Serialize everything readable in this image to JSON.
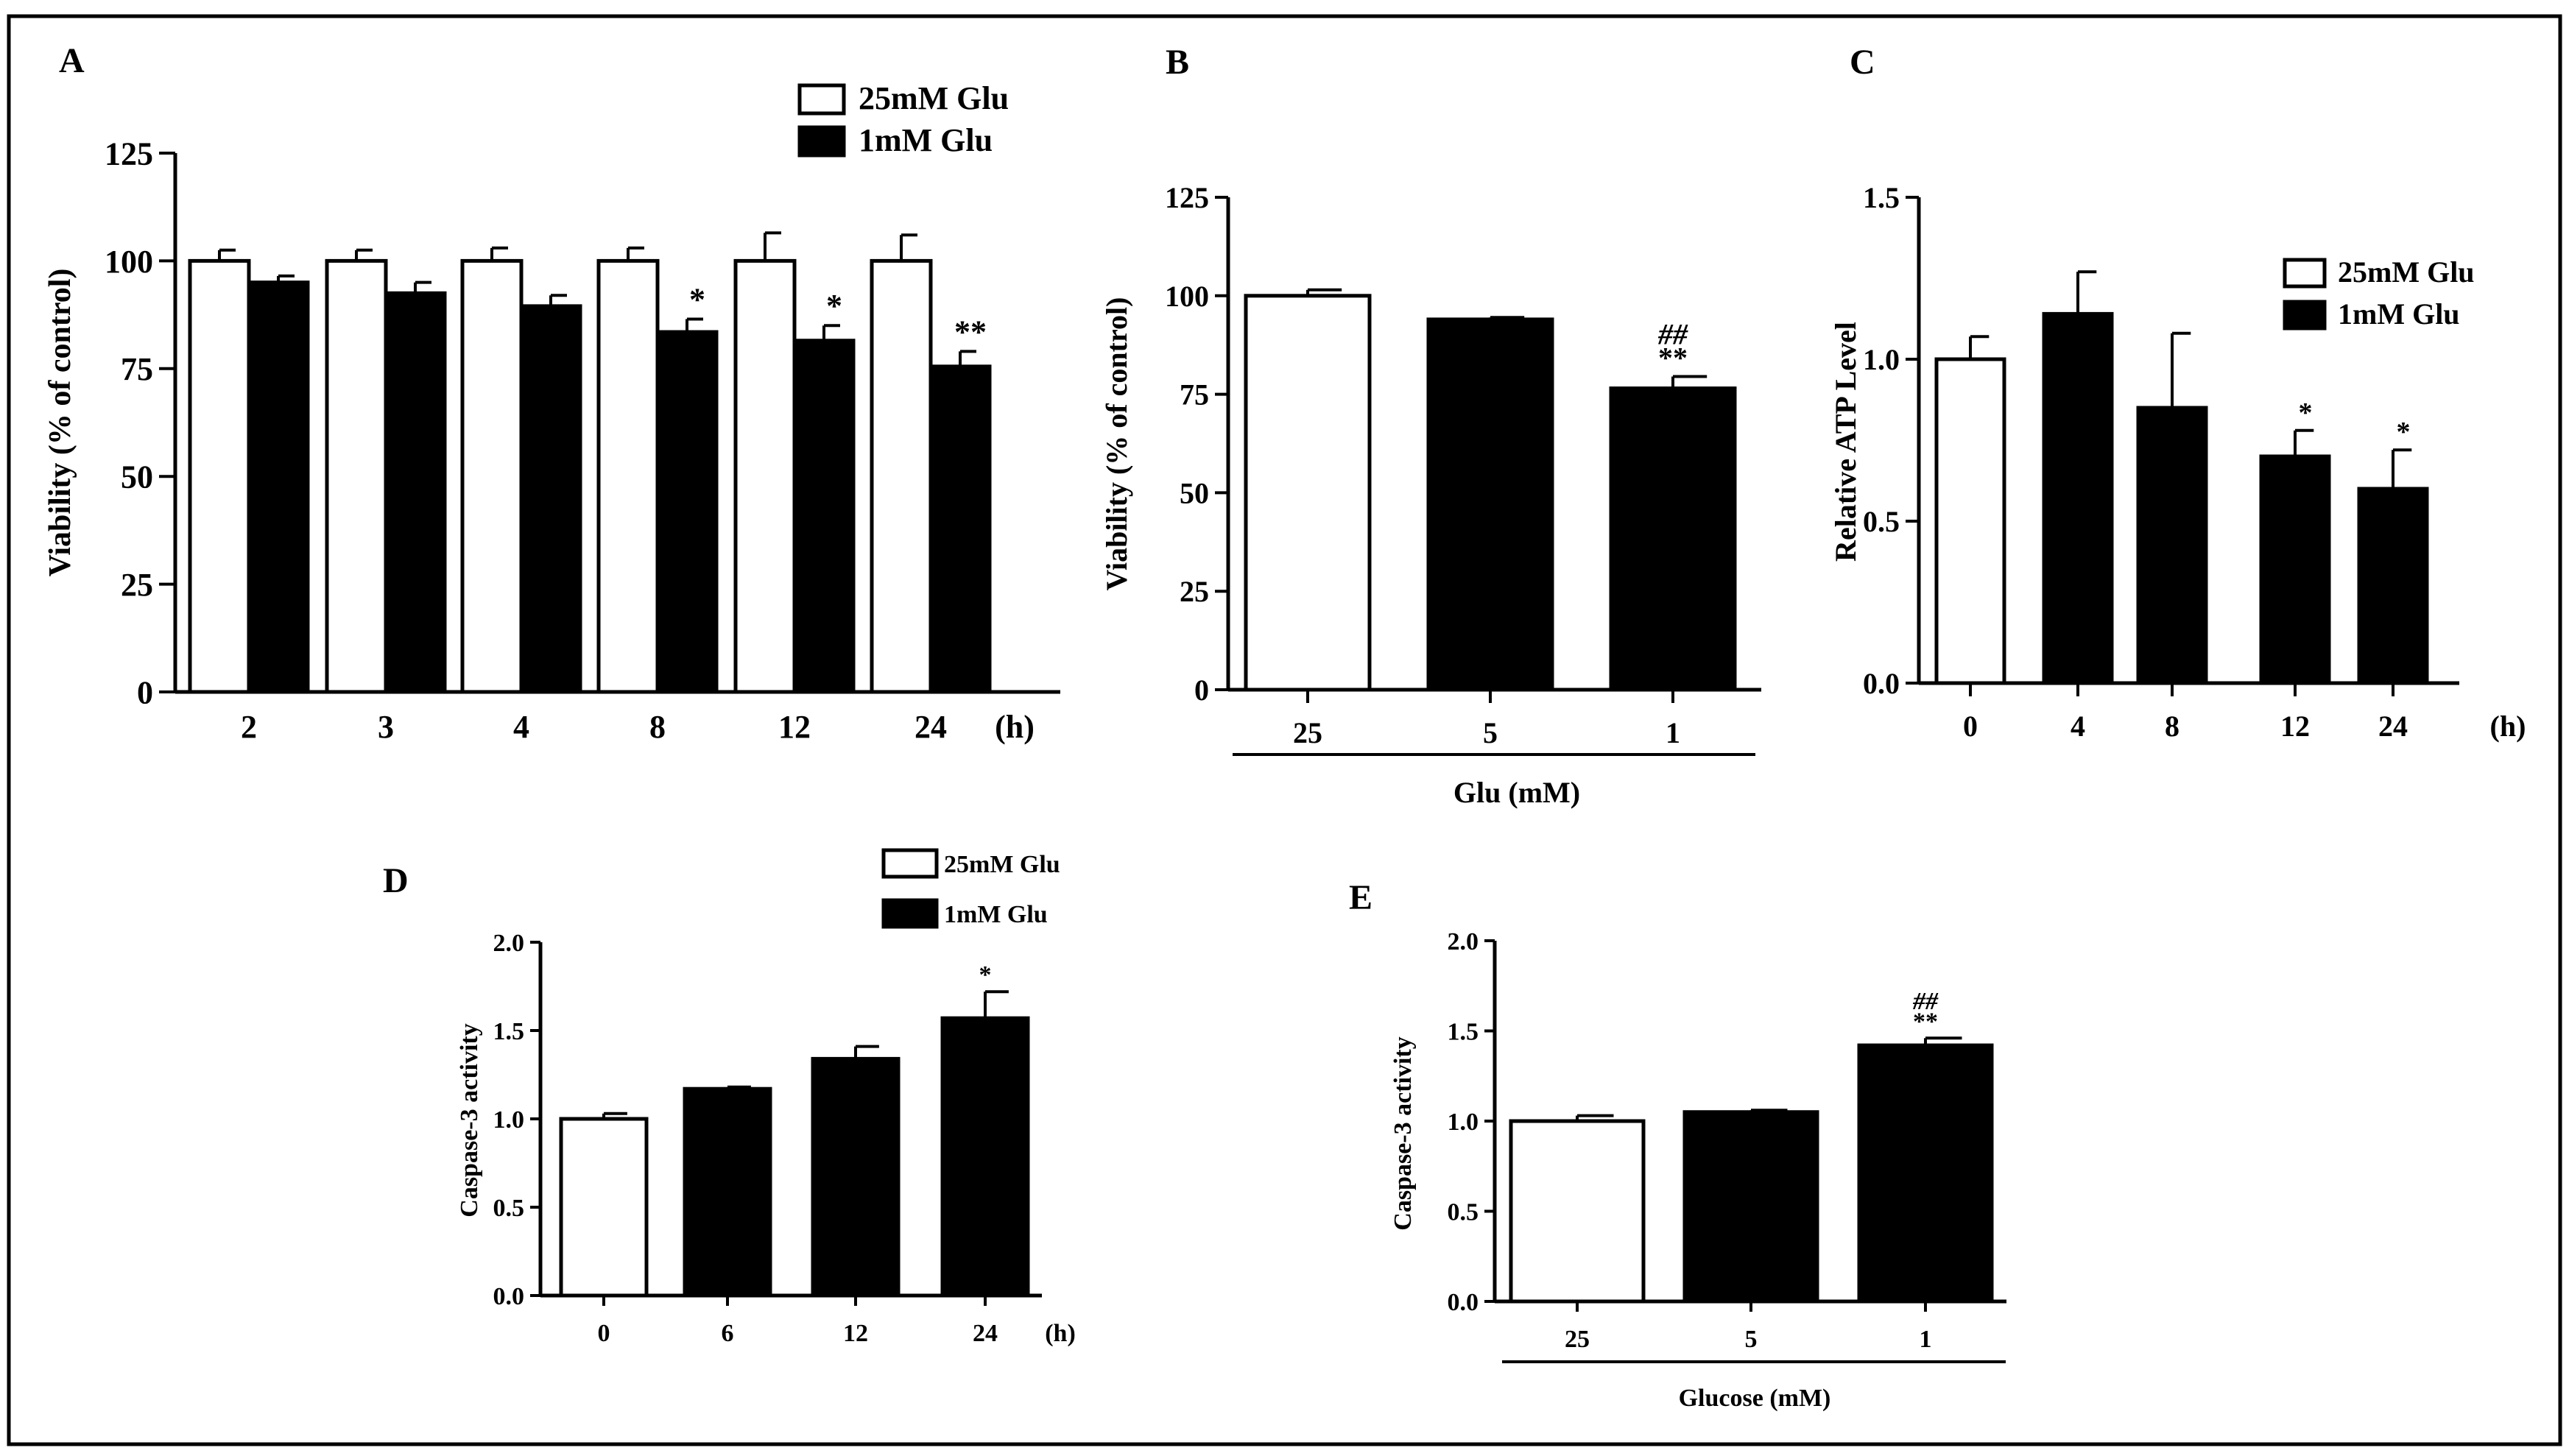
{
  "figure": {
    "colors": {
      "line": "#000000",
      "fill_control": "#ffffff",
      "fill_treated": "#000000",
      "background": "#ffffff"
    }
  },
  "chart_data": [
    {
      "panel": "A",
      "type": "bar",
      "ylabel": "Viability (% of control)",
      "xlabel": "",
      "x_unit": "(h)",
      "categories": [
        "2",
        "3",
        "4",
        "8",
        "12",
        "24"
      ],
      "ylim": [
        0,
        125
      ],
      "yticks": [
        "0",
        "25",
        "50",
        "75",
        "100",
        "125"
      ],
      "legend": [
        {
          "label": "25mM Glu",
          "fill": "white"
        },
        {
          "label": "1mM Glu",
          "fill": "black"
        }
      ],
      "series": [
        {
          "name": "25mM Glu",
          "values": [
            100,
            100,
            100,
            100,
            100,
            100
          ],
          "errors": [
            2.5,
            2.5,
            3,
            3,
            6.5,
            6
          ]
        },
        {
          "name": "1mM Glu",
          "values": [
            95,
            92.5,
            89.5,
            83.5,
            81.5,
            75.5
          ],
          "errors": [
            1.5,
            2.5,
            2.5,
            3,
            3.5,
            3.5
          ],
          "annotations": [
            "",
            "",
            "",
            "*",
            "*",
            "**"
          ]
        }
      ]
    },
    {
      "panel": "B",
      "type": "bar",
      "ylabel": "Viability (% of control)",
      "xlabel": "Glu (mM)",
      "categories": [
        "25",
        "5",
        "1"
      ],
      "ylim": [
        0,
        125
      ],
      "yticks": [
        "0",
        "25",
        "50",
        "75",
        "100",
        "125"
      ],
      "values": [
        100,
        94,
        76.5
      ],
      "errors": [
        1.5,
        0.5,
        3
      ],
      "fills": [
        "white",
        "black",
        "black"
      ],
      "annotations": [
        "",
        "",
        "**"
      ],
      "annotations_top": [
        "",
        "",
        "##"
      ]
    },
    {
      "panel": "C",
      "type": "bar",
      "ylabel": "Relative  ATP  Level",
      "xlabel": "",
      "x_unit": "(h)",
      "categories": [
        "0",
        "4",
        "8",
        "12",
        "24"
      ],
      "ylim": [
        0,
        1.5
      ],
      "yticks": [
        "0.0",
        "0.5",
        "1.0",
        "1.5"
      ],
      "values": [
        1.0,
        1.14,
        0.85,
        0.7,
        0.6
      ],
      "errors": [
        0.07,
        0.13,
        0.23,
        0.08,
        0.12
      ],
      "fills": [
        "white",
        "black",
        "black",
        "black",
        "black"
      ],
      "annotations": [
        "",
        "",
        "",
        "*",
        "*"
      ],
      "legend": [
        {
          "label": "25mM Glu",
          "fill": "white"
        },
        {
          "label": "1mM Glu",
          "fill": "black"
        }
      ]
    },
    {
      "panel": "D",
      "type": "bar",
      "ylabel": "Caspase-3 activity",
      "xlabel": "",
      "x_unit": "(h)",
      "categories": [
        "0",
        "6",
        "12",
        "24"
      ],
      "ylim": [
        0,
        2.0
      ],
      "yticks": [
        "0.0",
        "0.5",
        "1.0",
        "1.5",
        "2.0"
      ],
      "values": [
        1.0,
        1.17,
        1.34,
        1.57
      ],
      "errors": [
        0.03,
        0.01,
        0.07,
        0.15
      ],
      "fills": [
        "white",
        "black",
        "black",
        "black"
      ],
      "annotations": [
        "",
        "",
        "",
        "*"
      ],
      "legend": [
        {
          "label": "25mM Glu",
          "fill": "white"
        },
        {
          "label": "1mM Glu",
          "fill": "black"
        }
      ]
    },
    {
      "panel": "E",
      "type": "bar",
      "ylabel": "Caspase-3 activity",
      "xlabel": "Glucose (mM)",
      "categories": [
        "25",
        "5",
        "1"
      ],
      "ylim": [
        0,
        2.0
      ],
      "yticks": [
        "0.0",
        "0.5",
        "1.0",
        "1.5",
        "2.0"
      ],
      "values": [
        1.0,
        1.05,
        1.42
      ],
      "errors": [
        0.03,
        0.01,
        0.04
      ],
      "fills": [
        "white",
        "black",
        "black"
      ],
      "annotations": [
        "",
        "",
        "**"
      ],
      "annotations_top": [
        "",
        "",
        "##"
      ]
    }
  ]
}
